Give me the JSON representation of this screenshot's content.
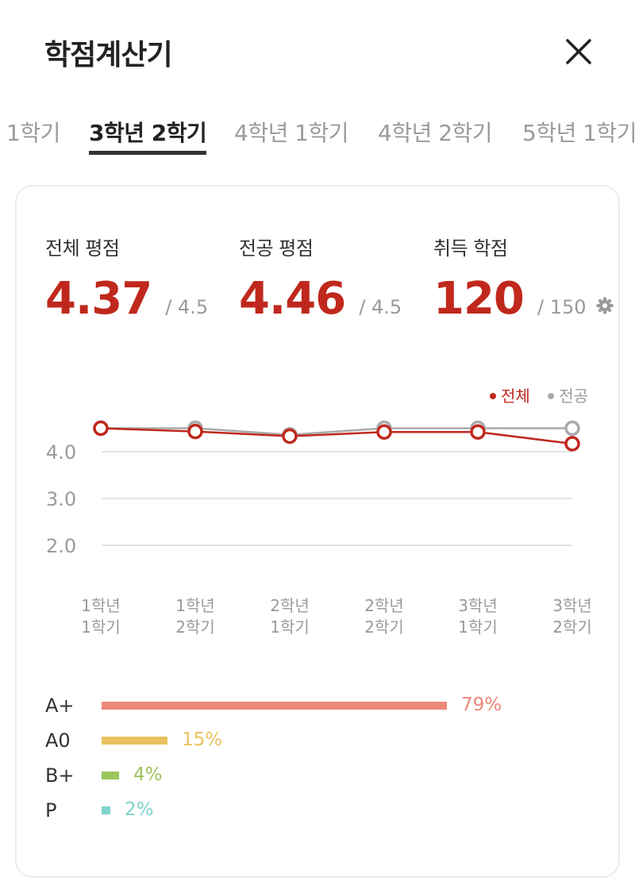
{
  "header": {
    "title": "학점계산기",
    "close_icon": "close-icon"
  },
  "tabs": [
    {
      "label": "1학기",
      "active": false
    },
    {
      "label": "3학년 2학기",
      "active": true
    },
    {
      "label": "4학년 1학기",
      "active": false
    },
    {
      "label": "4학년 2학기",
      "active": false
    },
    {
      "label": "5학년 1학기",
      "active": false
    }
  ],
  "stats": {
    "overall": {
      "label": "전체 평점",
      "value": "4.37",
      "max": "/ 4.5"
    },
    "major": {
      "label": "전공 평점",
      "value": "4.46",
      "max": "/ 4.5"
    },
    "credits": {
      "label": "취득 학점",
      "value": "120",
      "max": "/ 150",
      "settings_icon": "gear-icon"
    }
  },
  "colors": {
    "accent": "#c0281d",
    "major_line": "#aaaaaa",
    "grid": "#e3e3e3",
    "axis_text": "#9a9a9a"
  },
  "chart_data": {
    "type": "line",
    "categories": [
      "1학년 1학기",
      "1학년 2학기",
      "2학년 1학기",
      "2학년 2학기",
      "3학년 1학기",
      "3학년 2학기"
    ],
    "category_lines": [
      [
        "1학년",
        "1학기"
      ],
      [
        "1학년",
        "2학기"
      ],
      [
        "2학년",
        "1학기"
      ],
      [
        "2학년",
        "2학기"
      ],
      [
        "3학년",
        "1학기"
      ],
      [
        "3학년",
        "2학기"
      ]
    ],
    "series": [
      {
        "name": "전체",
        "color": "#c0281d",
        "values": [
          4.5,
          4.43,
          4.33,
          4.42,
          4.42,
          4.17
        ]
      },
      {
        "name": "전공",
        "color": "#aaaaaa",
        "values": [
          4.5,
          4.5,
          4.36,
          4.5,
          4.5,
          4.5
        ]
      }
    ],
    "yticks": [
      "4.0",
      "3.0",
      "2.0"
    ],
    "ytick_values": [
      4.0,
      3.0,
      2.0
    ],
    "ylim": [
      2.0,
      4.5
    ],
    "grid": true,
    "legend": "top-right"
  },
  "grade_distribution": [
    {
      "grade": "A+",
      "percent": 79,
      "label": "79%",
      "color": "#ee8877"
    },
    {
      "grade": "A0",
      "percent": 15,
      "label": "15%",
      "color": "#e8c25c"
    },
    {
      "grade": "B+",
      "percent": 4,
      "label": "4%",
      "color": "#9cc45d"
    },
    {
      "grade": "P",
      "percent": 2,
      "label": "2%",
      "color": "#7fd3cc"
    }
  ]
}
